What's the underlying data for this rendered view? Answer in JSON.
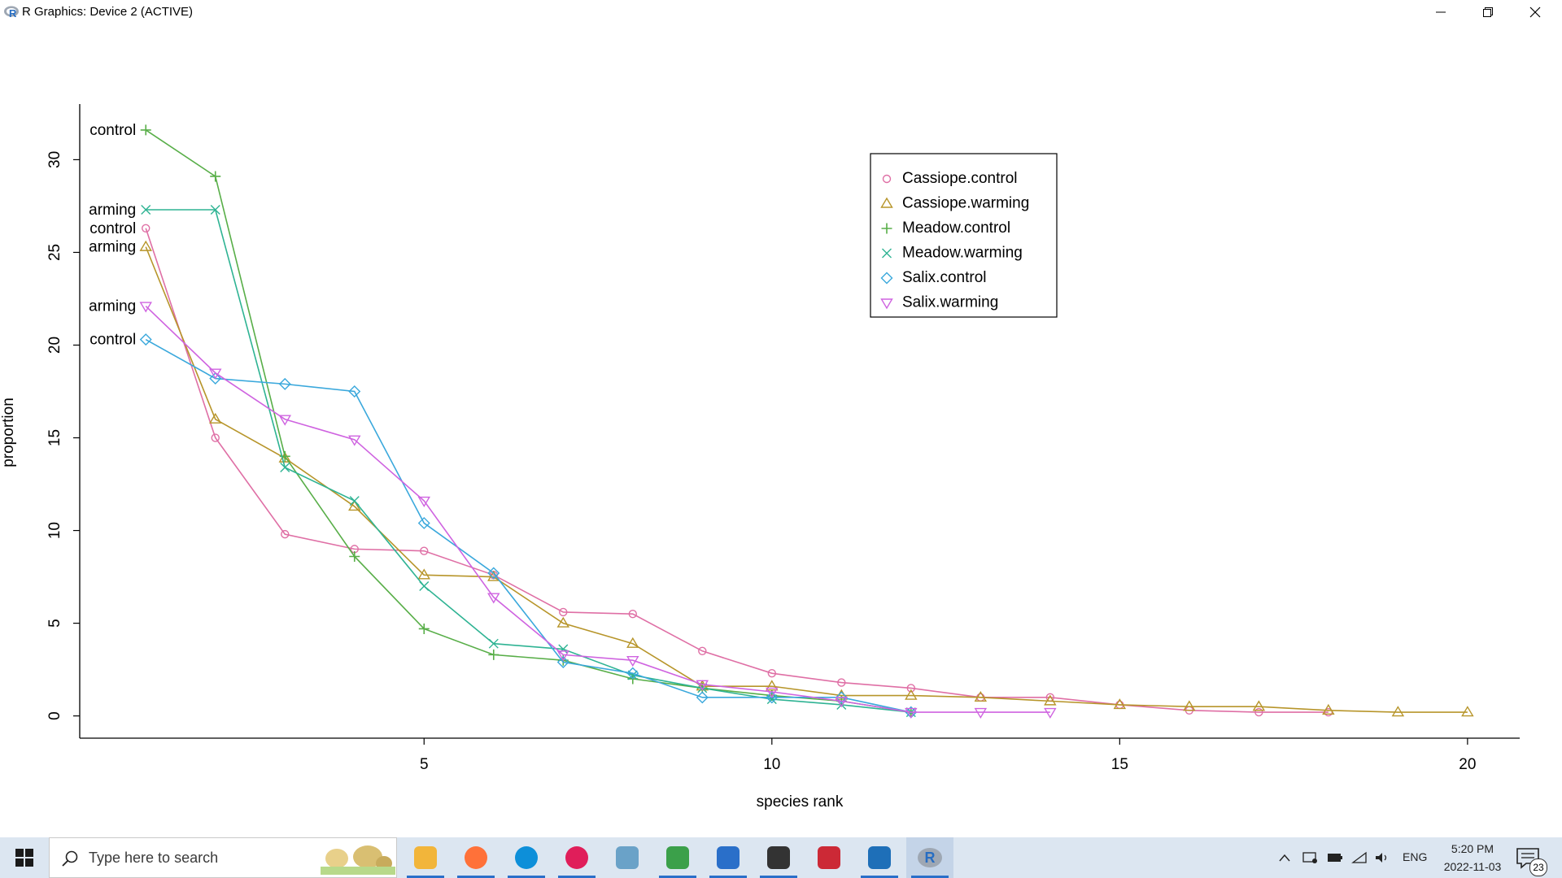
{
  "window": {
    "title": "R Graphics: Device 2 (ACTIVE)",
    "minimize_label": "Minimize",
    "restore_label": "Restore",
    "close_label": "Close"
  },
  "chart_data": {
    "type": "line",
    "xlabel": "species rank",
    "ylabel": "proportion",
    "xlim": [
      0.05,
      20.75
    ],
    "ylim": [
      -1.2,
      33.0
    ],
    "xticks": [
      5,
      10,
      15,
      20
    ],
    "yticks": [
      0,
      5,
      10,
      15,
      20,
      25,
      30
    ],
    "legend_position": "top-right",
    "grid": false,
    "series": [
      {
        "name": "Cassiope.control",
        "color": "#df6fa5",
        "marker": "circle",
        "x": [
          1,
          2,
          3,
          4,
          5,
          6,
          7,
          8,
          9,
          10,
          11,
          12,
          13,
          14,
          15,
          16,
          17,
          18
        ],
        "y": [
          26.3,
          15.0,
          9.8,
          9.0,
          8.9,
          7.6,
          5.6,
          5.5,
          3.5,
          2.3,
          1.8,
          1.5,
          1.0,
          1.0,
          0.6,
          0.3,
          0.2,
          0.2
        ]
      },
      {
        "name": "Cassiope.warming",
        "color": "#b7952a",
        "marker": "triangle-up",
        "x": [
          1,
          2,
          3,
          4,
          5,
          6,
          7,
          8,
          9,
          10,
          11,
          12,
          13,
          14,
          15,
          16,
          17,
          18,
          19,
          20
        ],
        "y": [
          25.3,
          16.0,
          13.9,
          11.3,
          7.6,
          7.5,
          5.0,
          3.9,
          1.6,
          1.6,
          1.1,
          1.1,
          1.0,
          0.8,
          0.6,
          0.5,
          0.5,
          0.3,
          0.2,
          0.2
        ]
      },
      {
        "name": "Meadow.control",
        "color": "#58ae48",
        "marker": "plus",
        "x": [
          1,
          2,
          3,
          4,
          5,
          6,
          7,
          8,
          9,
          10,
          11,
          12
        ],
        "y": [
          31.6,
          29.1,
          14.0,
          8.6,
          4.7,
          3.3,
          3.0,
          2.0,
          1.5,
          1.1,
          0.8,
          0.2
        ]
      },
      {
        "name": "Meadow.warming",
        "color": "#2eb393",
        "marker": "cross",
        "x": [
          1,
          2,
          3,
          4,
          5,
          6,
          7,
          8,
          9,
          10,
          11,
          12
        ],
        "y": [
          27.3,
          27.3,
          13.4,
          11.6,
          7.0,
          3.9,
          3.6,
          2.2,
          1.5,
          0.9,
          0.6,
          0.2
        ]
      },
      {
        "name": "Salix.control",
        "color": "#3aa8dc",
        "marker": "diamond",
        "x": [
          1,
          2,
          3,
          4,
          5,
          6,
          7,
          8,
          9,
          10,
          11,
          12
        ],
        "y": [
          20.3,
          18.2,
          17.9,
          17.5,
          10.4,
          7.7,
          2.9,
          2.3,
          1.0,
          1.0,
          1.0,
          0.2
        ]
      },
      {
        "name": "Salix.warming",
        "color": "#cf63e0",
        "marker": "triangle-down",
        "x": [
          1,
          2,
          3,
          4,
          5,
          6,
          7,
          8,
          9,
          10,
          11,
          12,
          13,
          14
        ],
        "y": [
          22.1,
          18.5,
          16.0,
          14.9,
          11.6,
          6.4,
          3.3,
          3.0,
          1.7,
          1.3,
          0.8,
          0.2,
          0.2,
          0.2
        ]
      }
    ],
    "annotations": [
      {
        "text": "control",
        "series": "Meadow.control"
      },
      {
        "text": "arming",
        "series": "Meadow.warming"
      },
      {
        "text": "control",
        "series": "Cassiope.control"
      },
      {
        "text": "arming",
        "series": "Cassiope.warming"
      },
      {
        "text": "arming",
        "series": "Salix.warming"
      },
      {
        "text": "control",
        "series": "Salix.control"
      }
    ]
  },
  "taskbar": {
    "search_placeholder": "Type here to search",
    "apps": [
      {
        "name": "File Explorer",
        "icon": "folder-icon",
        "color": "#f2b53a"
      },
      {
        "name": "Firefox",
        "icon": "firefox-icon",
        "color": "#ff7139"
      },
      {
        "name": "Skype",
        "icon": "skype-icon",
        "color": "#0d8fd9"
      },
      {
        "name": "Slack",
        "icon": "slack-icon",
        "color": "#e01e5a"
      },
      {
        "name": "Notes",
        "icon": "notes-icon",
        "color": "#6aa2c8"
      },
      {
        "name": "Palette",
        "icon": "palette-icon",
        "color": "#3ba04a"
      },
      {
        "name": "Document",
        "icon": "document-icon",
        "color": "#2a6fc9"
      },
      {
        "name": "Screenshot",
        "icon": "screenshot-icon",
        "color": "#333333"
      },
      {
        "name": "Zotero",
        "icon": "zotero-icon",
        "color": "#cc2936"
      },
      {
        "name": "Photos",
        "icon": "photos-icon",
        "color": "#1e6fb8"
      },
      {
        "name": "R",
        "icon": "r-icon",
        "color": "#276dc2"
      }
    ],
    "language": "ENG",
    "time": "5:20 PM",
    "date": "2022-11-03",
    "notification_count": "23"
  }
}
